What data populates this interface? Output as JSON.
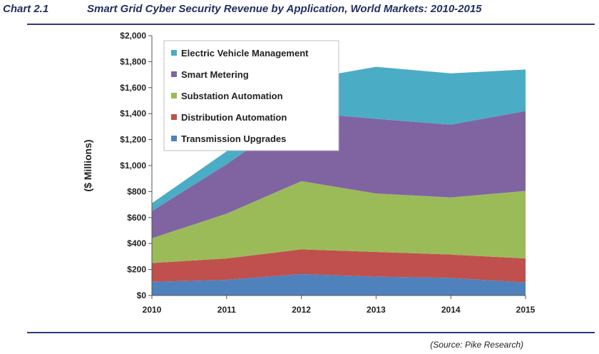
{
  "header": {
    "chart_number": "Chart 2.1",
    "title": "Smart Grid Cyber Security Revenue by Application, World Markets:  2010-2015"
  },
  "footer": {
    "source": "(Source: Pike Research)"
  },
  "chart_data": {
    "type": "area",
    "stacked": true,
    "title": "Smart Grid Cyber Security Revenue by Application, World Markets:  2010-2015",
    "xlabel": "",
    "ylabel": "($ Millions)",
    "ylim": [
      0,
      2000
    ],
    "y_ticks": [
      0,
      200,
      400,
      600,
      800,
      1000,
      1200,
      1400,
      1600,
      1800,
      2000
    ],
    "y_tick_labels": [
      "$0",
      "$200",
      "$400",
      "$600",
      "$800",
      "$1,000",
      "$1,200",
      "$1,400",
      "$1,600",
      "$1,800",
      "$2,000"
    ],
    "x": [
      "2010",
      "2011",
      "2012",
      "2013",
      "2014",
      "2015"
    ],
    "legend_position": "top-left",
    "series": [
      {
        "name": "Transmission Upgrades",
        "color": "#4f81bd",
        "values": [
          105,
          120,
          165,
          145,
          135,
          100
        ]
      },
      {
        "name": "Distribution Automation",
        "color": "#c0504d",
        "values": [
          145,
          165,
          190,
          190,
          180,
          185
        ]
      },
      {
        "name": "Substation Automation",
        "color": "#9bbb59",
        "values": [
          190,
          345,
          525,
          450,
          440,
          520
        ]
      },
      {
        "name": "Smart Metering",
        "color": "#8064a2",
        "values": [
          210,
          380,
          530,
          575,
          560,
          615
        ]
      },
      {
        "name": "Electric Vehicle Management",
        "color": "#4bacc6",
        "values": [
          60,
          100,
          250,
          400,
          395,
          320
        ]
      }
    ]
  }
}
